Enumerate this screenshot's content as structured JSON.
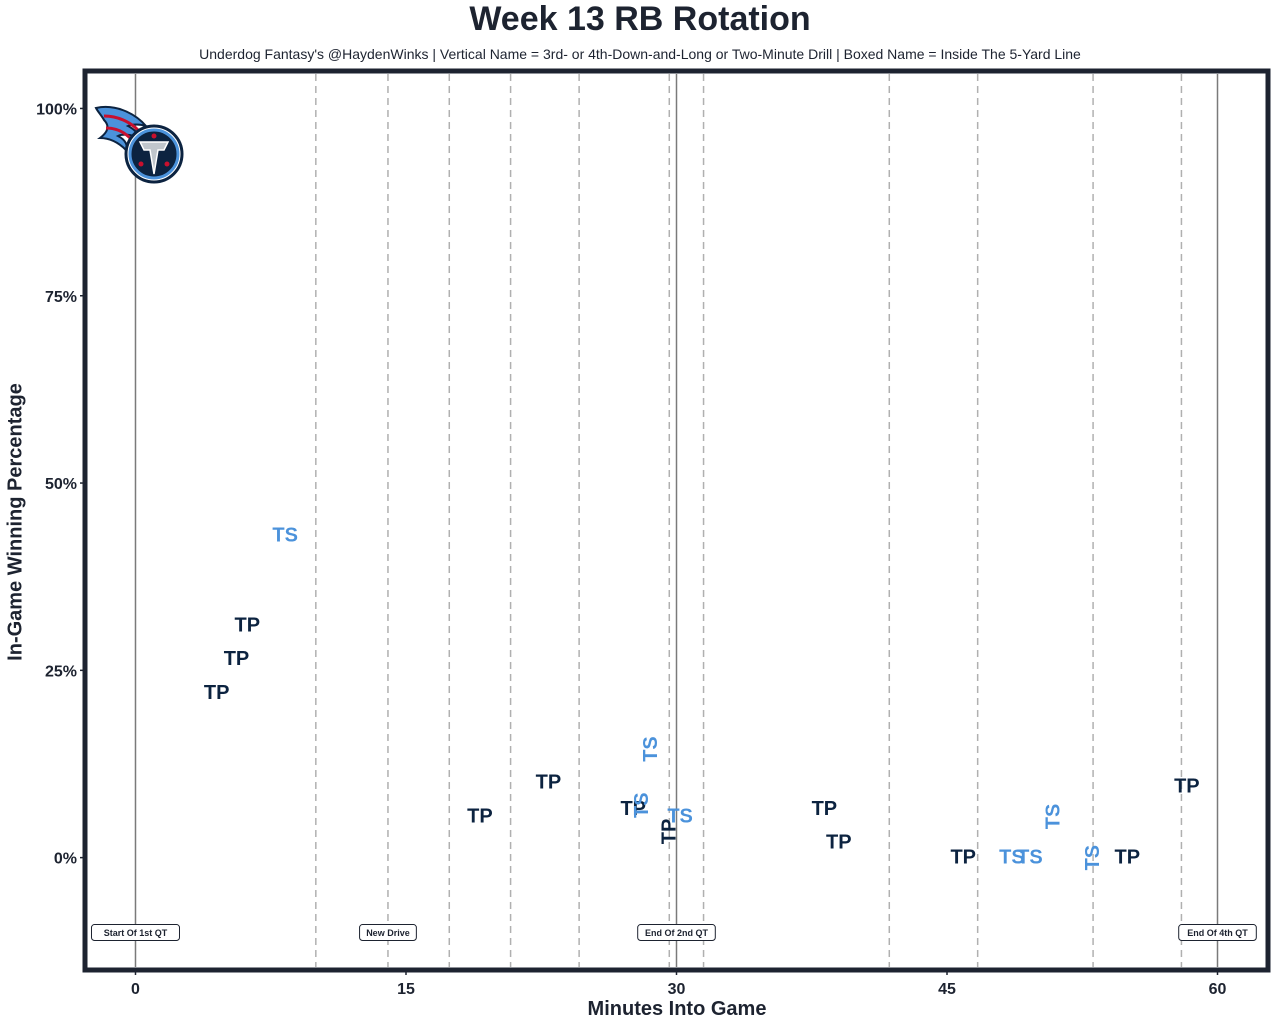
{
  "colors": {
    "frame": "#1d2330",
    "tp": "#0c2340",
    "ts": "#4b92db",
    "dashed": "#b0b0b0",
    "solid": "#7a7a7a",
    "logo_navy": "#0c2340",
    "logo_blue": "#4b92db",
    "logo_red": "#c8102e"
  },
  "chart_data": {
    "type": "scatter",
    "title": "Week 13 RB Rotation",
    "subtitle": "Underdog Fantasy's @HaydenWinks | Vertical Name = 3rd- or 4th-Down-and-Long or Two-Minute Drill | Boxed Name = Inside The 5-Yard Line",
    "xlabel": "Minutes Into Game",
    "ylabel": "In-Game Winning Percentage",
    "xlim": [
      -2.8,
      62.8
    ],
    "ylim": [
      -15,
      105
    ],
    "x_ticks": [
      0,
      15,
      30,
      45,
      60
    ],
    "x_tick_labels": [
      "0",
      "15",
      "30",
      "45",
      "60"
    ],
    "y_ticks": [
      0,
      25,
      50,
      75,
      100
    ],
    "y_tick_labels": [
      "0%",
      "25%",
      "50%",
      "75%",
      "100%"
    ],
    "grid": false,
    "quarter_lines": [
      0,
      30,
      60
    ],
    "drive_lines": [
      10,
      14,
      17.4,
      20.8,
      24.6,
      29.6,
      31.5,
      41.8,
      46.7,
      53.1,
      58
    ],
    "annotations": [
      {
        "x": 0,
        "label": "Start Of 1st QT"
      },
      {
        "x": 14,
        "label": "New Drive"
      },
      {
        "x": 30,
        "label": "End Of 2nd QT"
      },
      {
        "x": 60,
        "label": "End Of 4th QT"
      }
    ],
    "annotation_y": -10,
    "series": [
      {
        "name": "TP",
        "points": [
          {
            "x": 4.5,
            "y": 22,
            "vertical": false
          },
          {
            "x": 5.6,
            "y": 26.5,
            "vertical": false
          },
          {
            "x": 6.2,
            "y": 31,
            "vertical": false
          },
          {
            "x": 19.1,
            "y": 5.5,
            "vertical": false
          },
          {
            "x": 22.9,
            "y": 10,
            "vertical": false
          },
          {
            "x": 27.6,
            "y": 6.5,
            "vertical": false
          },
          {
            "x": 29.6,
            "y": 3.5,
            "vertical": true
          },
          {
            "x": 38.2,
            "y": 6.5,
            "vertical": false
          },
          {
            "x": 39,
            "y": 2,
            "vertical": false
          },
          {
            "x": 45.9,
            "y": 0,
            "vertical": false
          },
          {
            "x": 55,
            "y": 0,
            "vertical": false
          },
          {
            "x": 58.3,
            "y": 9.5,
            "vertical": false
          }
        ]
      },
      {
        "name": "TS",
        "points": [
          {
            "x": 8.3,
            "y": 43,
            "vertical": false
          },
          {
            "x": 28.6,
            "y": 14.5,
            "vertical": true
          },
          {
            "x": 28.1,
            "y": 7,
            "vertical": true
          },
          {
            "x": 30.2,
            "y": 5.5,
            "vertical": false
          },
          {
            "x": 48.6,
            "y": 0,
            "vertical": false
          },
          {
            "x": 49.6,
            "y": 0,
            "vertical": false
          },
          {
            "x": 50.9,
            "y": 5.5,
            "vertical": true
          },
          {
            "x": 53.1,
            "y": 0,
            "vertical": true
          }
        ]
      }
    ]
  }
}
